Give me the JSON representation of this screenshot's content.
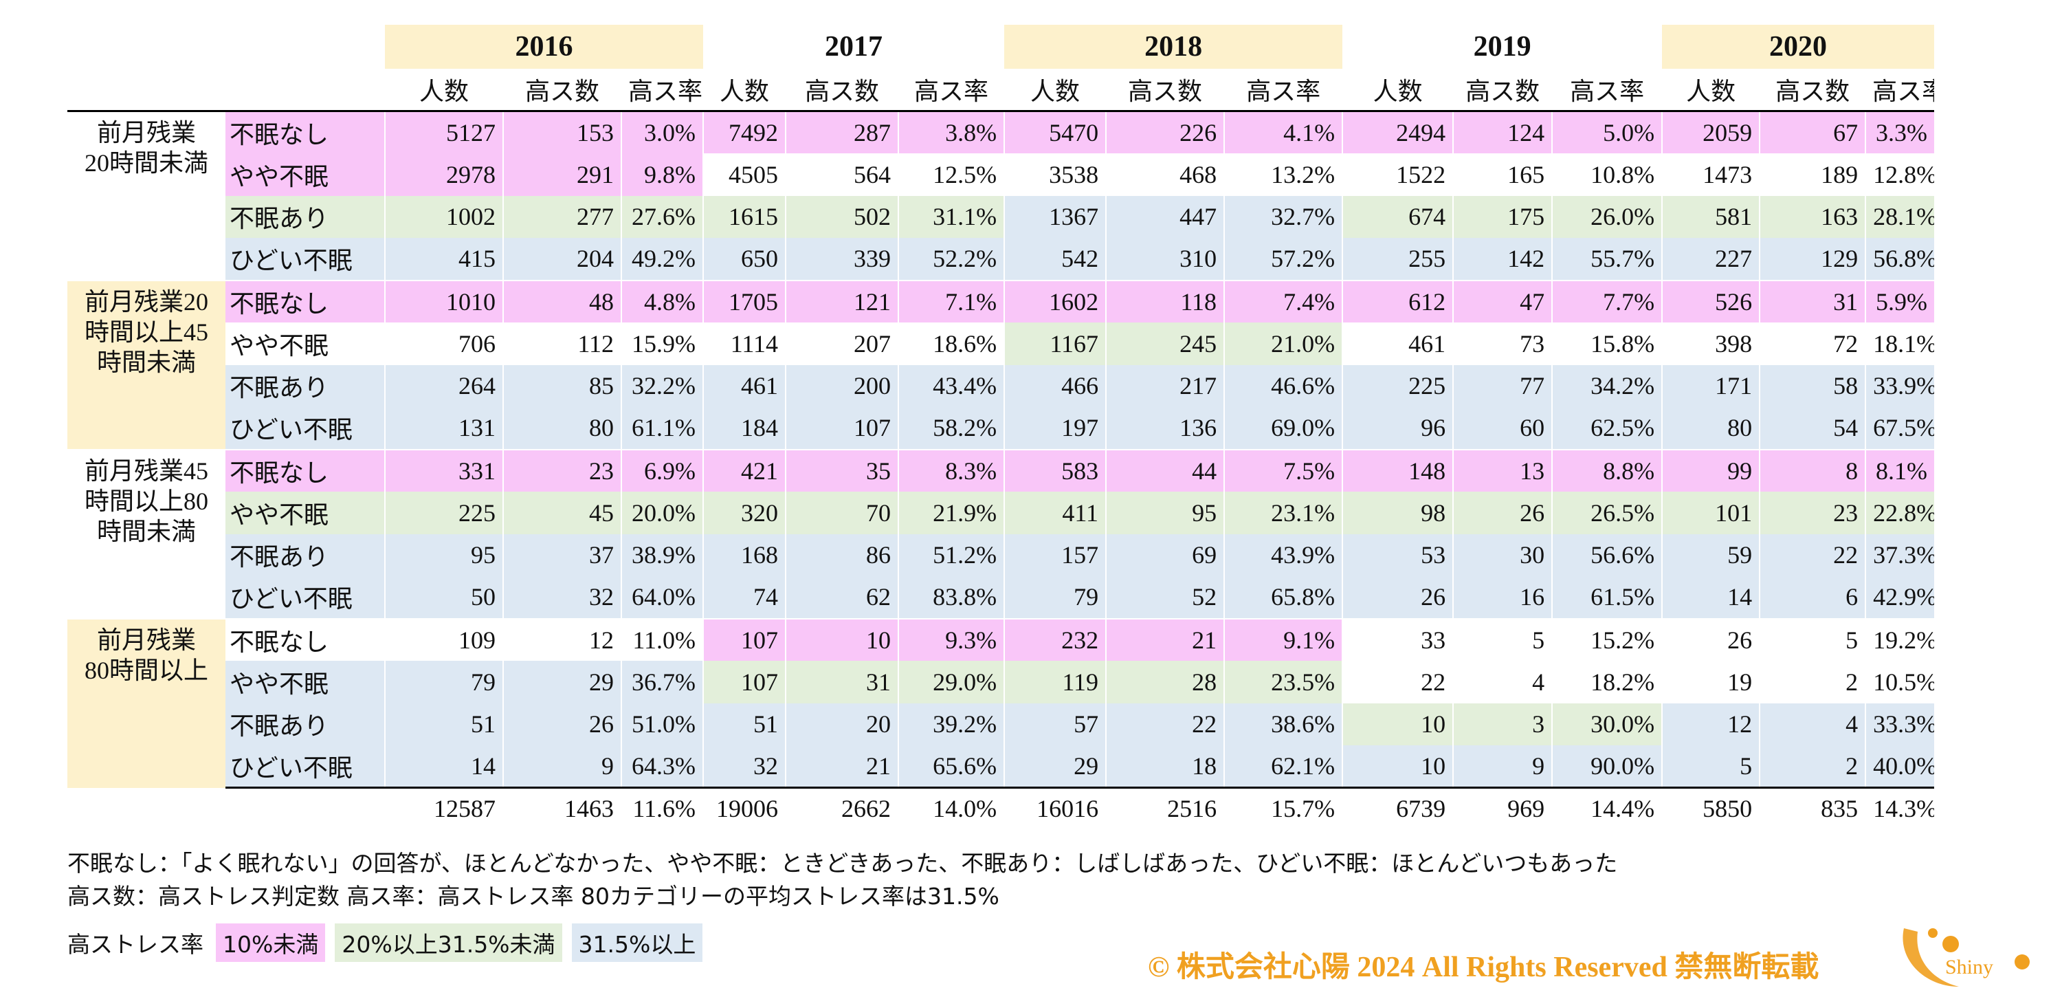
{
  "years": [
    "2016",
    "2017",
    "2018",
    "2019",
    "2020"
  ],
  "subheaders": [
    "人数",
    "高ス数",
    "高ス率"
  ],
  "groups": [
    {
      "label": "前月残業20時間未満",
      "label_lines": [
        "前月残業",
        "20時間未満"
      ],
      "rows": [
        {
          "category": "不眠なし",
          "values": [
            [
              "5127",
              "153",
              "3.0%"
            ],
            [
              "7492",
              "287",
              "3.8%"
            ],
            [
              "5470",
              "226",
              "4.1%"
            ],
            [
              "2494",
              "124",
              "5.0%"
            ],
            [
              "2059",
              "67",
              "3.3%"
            ]
          ]
        },
        {
          "category": "やや不眠",
          "values": [
            [
              "2978",
              "291",
              "9.8%"
            ],
            [
              "4505",
              "564",
              "12.5%"
            ],
            [
              "3538",
              "468",
              "13.2%"
            ],
            [
              "1522",
              "165",
              "10.8%"
            ],
            [
              "1473",
              "189",
              "12.8%"
            ]
          ]
        },
        {
          "category": "不眠あり",
          "values": [
            [
              "1002",
              "277",
              "27.6%"
            ],
            [
              "1615",
              "502",
              "31.1%"
            ],
            [
              "1367",
              "447",
              "32.7%"
            ],
            [
              "674",
              "175",
              "26.0%"
            ],
            [
              "581",
              "163",
              "28.1%"
            ]
          ]
        },
        {
          "category": "ひどい不眠",
          "values": [
            [
              "415",
              "204",
              "49.2%"
            ],
            [
              "650",
              "339",
              "52.2%"
            ],
            [
              "542",
              "310",
              "57.2%"
            ],
            [
              "255",
              "142",
              "55.7%"
            ],
            [
              "227",
              "129",
              "56.8%"
            ]
          ]
        }
      ]
    },
    {
      "label": "前月残業20時間以上45時間未満",
      "label_lines": [
        "前月残業20",
        "時間以上45",
        "時間未満"
      ],
      "rows": [
        {
          "category": "不眠なし",
          "values": [
            [
              "1010",
              "48",
              "4.8%"
            ],
            [
              "1705",
              "121",
              "7.1%"
            ],
            [
              "1602",
              "118",
              "7.4%"
            ],
            [
              "612",
              "47",
              "7.7%"
            ],
            [
              "526",
              "31",
              "5.9%"
            ]
          ]
        },
        {
          "category": "やや不眠",
          "values": [
            [
              "706",
              "112",
              "15.9%"
            ],
            [
              "1114",
              "207",
              "18.6%"
            ],
            [
              "1167",
              "245",
              "21.0%"
            ],
            [
              "461",
              "73",
              "15.8%"
            ],
            [
              "398",
              "72",
              "18.1%"
            ]
          ]
        },
        {
          "category": "不眠あり",
          "values": [
            [
              "264",
              "85",
              "32.2%"
            ],
            [
              "461",
              "200",
              "43.4%"
            ],
            [
              "466",
              "217",
              "46.6%"
            ],
            [
              "225",
              "77",
              "34.2%"
            ],
            [
              "171",
              "58",
              "33.9%"
            ]
          ]
        },
        {
          "category": "ひどい不眠",
          "values": [
            [
              "131",
              "80",
              "61.1%"
            ],
            [
              "184",
              "107",
              "58.2%"
            ],
            [
              "197",
              "136",
              "69.0%"
            ],
            [
              "96",
              "60",
              "62.5%"
            ],
            [
              "80",
              "54",
              "67.5%"
            ]
          ]
        }
      ]
    },
    {
      "label": "前月残業45時間以上80時間未満",
      "label_lines": [
        "前月残業45",
        "時間以上80",
        "時間未満"
      ],
      "rows": [
        {
          "category": "不眠なし",
          "values": [
            [
              "331",
              "23",
              "6.9%"
            ],
            [
              "421",
              "35",
              "8.3%"
            ],
            [
              "583",
              "44",
              "7.5%"
            ],
            [
              "148",
              "13",
              "8.8%"
            ],
            [
              "99",
              "8",
              "8.1%"
            ]
          ]
        },
        {
          "category": "やや不眠",
          "values": [
            [
              "225",
              "45",
              "20.0%"
            ],
            [
              "320",
              "70",
              "21.9%"
            ],
            [
              "411",
              "95",
              "23.1%"
            ],
            [
              "98",
              "26",
              "26.5%"
            ],
            [
              "101",
              "23",
              "22.8%"
            ]
          ]
        },
        {
          "category": "不眠あり",
          "values": [
            [
              "95",
              "37",
              "38.9%"
            ],
            [
              "168",
              "86",
              "51.2%"
            ],
            [
              "157",
              "69",
              "43.9%"
            ],
            [
              "53",
              "30",
              "56.6%"
            ],
            [
              "59",
              "22",
              "37.3%"
            ]
          ]
        },
        {
          "category": "ひどい不眠",
          "values": [
            [
              "50",
              "32",
              "64.0%"
            ],
            [
              "74",
              "62",
              "83.8%"
            ],
            [
              "79",
              "52",
              "65.8%"
            ],
            [
              "26",
              "16",
              "61.5%"
            ],
            [
              "14",
              "6",
              "42.9%"
            ]
          ]
        }
      ]
    },
    {
      "label": "前月残業80時間以上",
      "label_lines": [
        "前月残業",
        "80時間以上"
      ],
      "rows": [
        {
          "category": "不眠なし",
          "values": [
            [
              "109",
              "12",
              "11.0%"
            ],
            [
              "107",
              "10",
              "9.3%"
            ],
            [
              "232",
              "21",
              "9.1%"
            ],
            [
              "33",
              "5",
              "15.2%"
            ],
            [
              "26",
              "5",
              "19.2%"
            ]
          ]
        },
        {
          "category": "やや不眠",
          "values": [
            [
              "79",
              "29",
              "36.7%"
            ],
            [
              "107",
              "31",
              "29.0%"
            ],
            [
              "119",
              "28",
              "23.5%"
            ],
            [
              "22",
              "4",
              "18.2%"
            ],
            [
              "19",
              "2",
              "10.5%"
            ]
          ]
        },
        {
          "category": "不眠あり",
          "values": [
            [
              "51",
              "26",
              "51.0%"
            ],
            [
              "51",
              "20",
              "39.2%"
            ],
            [
              "57",
              "22",
              "38.6%"
            ],
            [
              "10",
              "3",
              "30.0%"
            ],
            [
              "12",
              "4",
              "33.3%"
            ]
          ]
        },
        {
          "category": "ひどい不眠",
          "values": [
            [
              "14",
              "9",
              "64.3%"
            ],
            [
              "32",
              "21",
              "65.6%"
            ],
            [
              "29",
              "18",
              "62.1%"
            ],
            [
              "10",
              "9",
              "90.0%"
            ],
            [
              "5",
              "2",
              "40.0%"
            ]
          ]
        }
      ]
    }
  ],
  "totals": [
    [
      "12587",
      "1463",
      "11.6%"
    ],
    [
      "19006",
      "2662",
      "14.0%"
    ],
    [
      "16016",
      "2516",
      "15.7%"
    ],
    [
      "6739",
      "969",
      "14.4%"
    ],
    [
      "5850",
      "835",
      "14.3%"
    ]
  ],
  "notes": [
    "不眠なし：「よく眠れない」の回答が、ほとんどなかった、やや不眠：ときどきあった、不眠あり：しばしばあった、ひどい不眠：ほとんどいつもあった",
    "高ス数：高ストレス判定数  高ス率：高ストレス率  80カテゴリーの平均ストレス率は31.5%"
  ],
  "legend": {
    "label": "高ストレス率",
    "items": [
      {
        "text": "10%未満",
        "color": "#f9c6f8"
      },
      {
        "text": "20%以上31.5%未満",
        "color": "#e3efda"
      },
      {
        "text": "31.5%以上",
        "color": "#dde8f3"
      }
    ]
  },
  "copyright": "© 株式会社心陽 2024 All Rights Reserved  禁無断転載",
  "logo_text": "Shiny",
  "colors": {
    "pink": "#f9c6f8",
    "green": "#e3efda",
    "blue": "#dde8f3",
    "cream": "#fdf1cc",
    "brand": "#f0a020"
  }
}
